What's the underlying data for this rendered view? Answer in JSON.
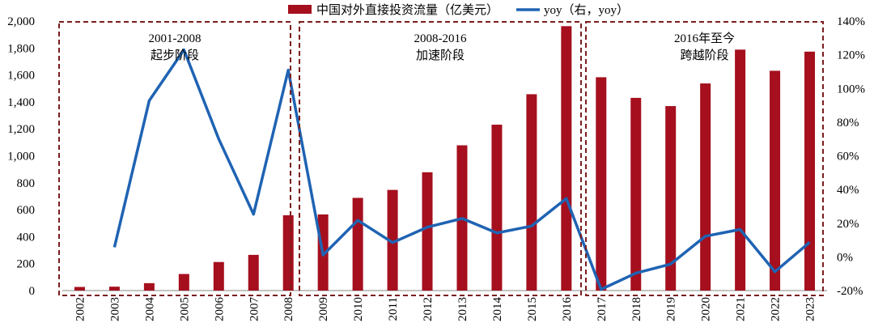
{
  "chart_data": {
    "type": "bar",
    "categories": [
      "2002",
      "2003",
      "2004",
      "2005",
      "2006",
      "2007",
      "2008",
      "2009",
      "2010",
      "2011",
      "2012",
      "2013",
      "2014",
      "2015",
      "2016",
      "2017",
      "2018",
      "2019",
      "2020",
      "2021",
      "2022",
      "2023"
    ],
    "series": [
      {
        "name": "中国对外直接投资流量（亿美元）",
        "type": "bar",
        "axis": "left",
        "color": "#A50F1E",
        "values": [
          27,
          29,
          55,
          123,
          212,
          265,
          559,
          565,
          688,
          747,
          878,
          1078,
          1231,
          1457,
          1962,
          1583,
          1430,
          1369,
          1537,
          1788,
          1631,
          1773
        ]
      },
      {
        "name": "yoy（右，yoy）",
        "type": "line",
        "axis": "right",
        "color": "#1F63B3",
        "values": [
          null,
          5.7,
          92.7,
          122.9,
          70.0,
          25.3,
          110.9,
          1.1,
          21.7,
          8.5,
          17.6,
          22.8,
          14.2,
          18.3,
          34.7,
          -19.3,
          -9.6,
          -4.3,
          12.3,
          16.3,
          -8.8,
          8.7
        ]
      }
    ],
    "y_left": {
      "min": 0,
      "max": 2000,
      "step": 200,
      "tick_labels": [
        "0",
        "200",
        "400",
        "600",
        "800",
        "1,000",
        "1,200",
        "1,400",
        "1,600",
        "1,800",
        "2,000"
      ]
    },
    "y_right": {
      "min": -20,
      "max": 140,
      "step": 20,
      "tick_labels": [
        "-20%",
        "0%",
        "20%",
        "40%",
        "60%",
        "80%",
        "100%",
        "120%",
        "140%"
      ]
    },
    "grid": false,
    "legend_position": "top-center",
    "phases": [
      {
        "title": "2001-2008",
        "subtitle": "起步阶段",
        "start": "2002",
        "end": "2008"
      },
      {
        "title": "2008-2016",
        "subtitle": "加速阶段",
        "start": "2009",
        "end": "2016"
      },
      {
        "title": "2016年至今",
        "subtitle": "跨越阶段",
        "start": "2017",
        "end": "2023"
      }
    ],
    "phase_box_color": "#7A1E1E"
  }
}
